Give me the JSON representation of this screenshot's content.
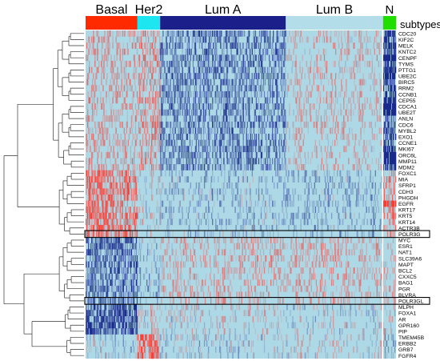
{
  "chart_data": {
    "type": "heatmap",
    "legend_label": "subtypes",
    "colors": {
      "background": "#add8e6",
      "up": "#ff3b30",
      "down": "#1a2a8c",
      "highlight_box": "#000000",
      "dendrogram": "#333333"
    },
    "subtypes": [
      {
        "name": "Basal",
        "color": "#ff2a00",
        "columns": 64
      },
      {
        "name": "Her2",
        "color": "#1ee6f0",
        "columns": 28
      },
      {
        "name": "Lum A",
        "color": "#1b1f8a",
        "columns": 155
      },
      {
        "name": "Lum B",
        "color": "#b3dde9",
        "columns": 120
      },
      {
        "name": "N",
        "color": "#22dd00",
        "columns": 16
      }
    ],
    "genes": [
      "CDC20",
      "KIF2C",
      "MELK",
      "KNTC2",
      "CENPF",
      "TYMS",
      "PTTG1",
      "UBE2C",
      "BIRC5",
      "RRM2",
      "CCNB1",
      "CEP55",
      "CDCA1",
      "UBE2T",
      "ANLN",
      "CDC6",
      "MYBL2",
      "EXO1",
      "CCNE1",
      "MKI67",
      "ORC6L",
      "MMP11",
      "MDM2",
      "FOXC1",
      "MIA",
      "SFRP1",
      "CDH3",
      "PHGDH",
      "EGFR",
      "KRT17",
      "KRT5",
      "KRT14",
      "ACTR3B",
      "POLR3G",
      "MYC",
      "ESR1",
      "NAT1",
      "SLC39A6",
      "MAPT",
      "BCL2",
      "CXXC5",
      "BAG1",
      "PGR",
      "BLVRA",
      "POLR3GL",
      "MLPH",
      "FOXA1",
      "AR",
      "GPR160",
      "PIP",
      "TMEM45B",
      "ERBB2",
      "GRB7",
      "FGFR4"
    ],
    "boxed_genes": [
      "POLR3G",
      "POLR3GL"
    ],
    "clusters": [
      {
        "genes": [
          "CDC20",
          "KIF2C",
          "MELK",
          "KNTC2",
          "CENPF",
          "TYMS",
          "PTTG1",
          "UBE2C",
          "BIRC5",
          "RRM2",
          "CCNB1",
          "CEP55",
          "CDCA1",
          "UBE2T",
          "ANLN",
          "CDC6",
          "MYBL2",
          "EXO1",
          "CCNE1",
          "MKI67",
          "ORC6L",
          "MMP11",
          "MDM2"
        ],
        "pattern": {
          "Basal": 0.25,
          "Her2": 0.35,
          "Lum A": -0.45,
          "Lum B": 0.15,
          "N": -0.8
        }
      },
      {
        "genes": [
          "FOXC1",
          "MIA",
          "SFRP1",
          "CDH3",
          "PHGDH",
          "EGFR",
          "KRT17",
          "KRT5",
          "KRT14",
          "ACTR3B",
          "POLR3G"
        ],
        "pattern": {
          "Basal": 0.55,
          "Her2": 0.05,
          "Lum A": -0.12,
          "Lum B": -0.15,
          "N": 0.35
        }
      },
      {
        "genes": [
          "MYC",
          "ESR1",
          "NAT1",
          "SLC39A6",
          "MAPT",
          "BCL2",
          "CXXC5",
          "BAG1",
          "PGR",
          "BLVRA",
          "POLR3GL"
        ],
        "pattern": {
          "Basal": -0.55,
          "Her2": -0.12,
          "Lum A": 0.18,
          "Lum B": 0.2,
          "N": 0.1
        }
      },
      {
        "genes": [
          "MLPH",
          "FOXA1",
          "AR",
          "GPR160",
          "PIP"
        ],
        "pattern": {
          "Basal": -0.75,
          "Her2": 0.1,
          "Lum A": 0.05,
          "Lum B": 0.0,
          "N": 0.0
        }
      },
      {
        "genes": [
          "TMEM45B",
          "ERBB2",
          "GRB7",
          "FGFR4"
        ],
        "pattern": {
          "Basal": -0.05,
          "Her2": 0.6,
          "Lum A": -0.05,
          "Lum B": 0.05,
          "N": -0.1
        }
      }
    ],
    "gene_overrides": {
      "CENPF": {
        "N": -1.0
      },
      "UBE2C": {
        "N": -1.0
      },
      "CDCA1": {
        "N": -1.0
      },
      "UBE2T": {
        "N": -1.0
      },
      "EGFR": {
        "N": 1.0
      },
      "MMP11": {
        "N": -1.0
      },
      "ORC6L": {
        "N": -0.9
      },
      "CDC6": {
        "N": -0.6
      },
      "ERBB2": {
        "N": -0.3
      }
    },
    "legend": "none",
    "grid": false
  }
}
